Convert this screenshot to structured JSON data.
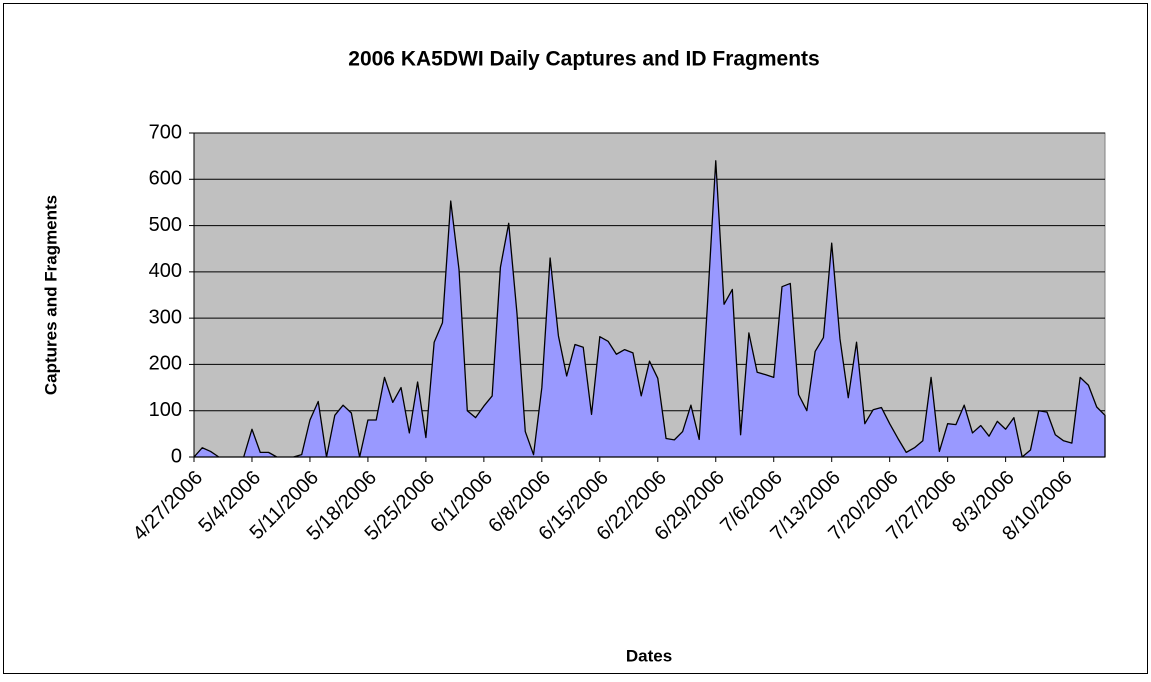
{
  "chart_data": {
    "type": "area",
    "title": "2006 KA5DWI Daily Captures and ID Fragments",
    "xlabel": "Dates",
    "ylabel": "Captures and Fragments",
    "categories": [
      "4/27/2006",
      null,
      null,
      null,
      null,
      null,
      null,
      "5/4/2006",
      null,
      null,
      null,
      null,
      null,
      null,
      "5/11/2006",
      null,
      null,
      null,
      null,
      null,
      null,
      "5/18/2006",
      null,
      null,
      null,
      null,
      null,
      null,
      "5/25/2006",
      null,
      null,
      null,
      null,
      null,
      null,
      "6/1/2006",
      null,
      null,
      null,
      null,
      null,
      null,
      "6/8/2006",
      null,
      null,
      null,
      null,
      null,
      null,
      "6/15/2006",
      null,
      null,
      null,
      null,
      null,
      null,
      "6/22/2006",
      null,
      null,
      null,
      null,
      null,
      null,
      "6/29/2006",
      null,
      null,
      null,
      null,
      null,
      null,
      "7/6/2006",
      null,
      null,
      null,
      null,
      null,
      null,
      "7/13/2006",
      null,
      null,
      null,
      null,
      null,
      null,
      "7/20/2006",
      null,
      null,
      null,
      null,
      null,
      null,
      "7/27/2006",
      null,
      null,
      null,
      null,
      null,
      null,
      "8/3/2006",
      null,
      null,
      null,
      null,
      null,
      null,
      "8/10/2006",
      null,
      null,
      null,
      null,
      null
    ],
    "values": [
      0,
      20,
      12,
      0,
      0,
      0,
      0,
      60,
      10,
      10,
      0,
      0,
      0,
      5,
      80,
      120,
      0,
      90,
      112,
      95,
      0,
      80,
      80,
      172,
      118,
      150,
      52,
      162,
      42,
      248,
      290,
      553,
      405,
      100,
      85,
      110,
      132,
      410,
      505,
      310,
      55,
      5,
      150,
      430,
      262,
      175,
      243,
      237,
      92,
      260,
      250,
      222,
      232,
      225,
      132,
      207,
      170,
      40,
      37,
      55,
      112,
      38,
      330,
      640,
      330,
      362,
      48,
      268,
      183,
      178,
      172,
      368,
      375,
      135,
      100,
      228,
      258,
      462,
      255,
      128,
      248,
      72,
      102,
      107,
      72,
      40,
      10,
      20,
      35,
      172,
      12,
      72,
      70,
      112,
      52,
      68,
      45,
      77,
      60,
      85,
      0,
      15,
      100,
      97,
      48,
      35,
      30,
      172,
      155,
      108,
      90
    ],
    "color": "#9999ff",
    "ylim": [
      0,
      700
    ],
    "yticks": [
      0,
      100,
      200,
      300,
      400,
      500,
      600,
      700
    ],
    "grid": true,
    "plot_background": "#c0c0c0"
  }
}
